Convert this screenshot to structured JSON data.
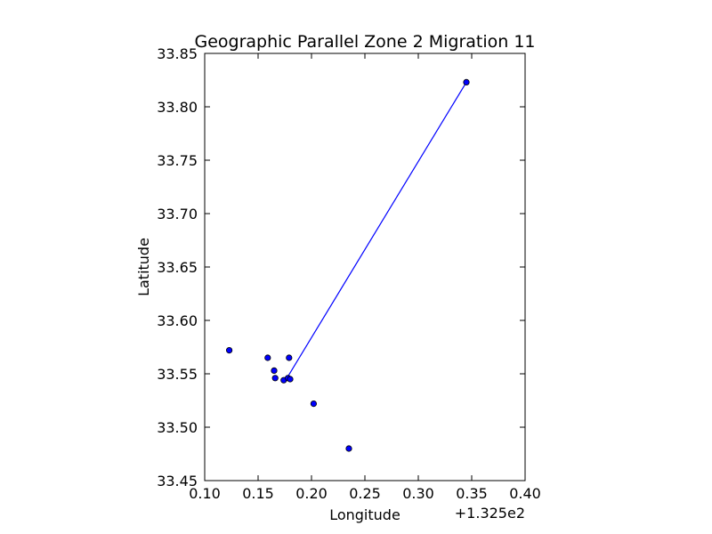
{
  "chart_data": {
    "type": "scatter",
    "title": "Geographic Parallel Zone 2 Migration 11",
    "xlabel": "Longitude",
    "ylabel": "Latitude",
    "x_offset_label": "+1.325e2",
    "xlim": [
      0.1,
      0.4
    ],
    "ylim": [
      33.45,
      33.85
    ],
    "xticks": [
      "0.10",
      "0.15",
      "0.20",
      "0.25",
      "0.30",
      "0.35",
      "0.40"
    ],
    "yticks": [
      "33.45",
      "33.50",
      "33.55",
      "33.60",
      "33.65",
      "33.70",
      "33.75",
      "33.80",
      "33.85"
    ],
    "grid": false,
    "point_color": "#0000ff",
    "line_color": "#0000ff",
    "points": [
      {
        "x": 0.123,
        "y": 33.572
      },
      {
        "x": 0.159,
        "y": 33.565
      },
      {
        "x": 0.165,
        "y": 33.553
      },
      {
        "x": 0.166,
        "y": 33.546
      },
      {
        "x": 0.174,
        "y": 33.544
      },
      {
        "x": 0.178,
        "y": 33.546
      },
      {
        "x": 0.179,
        "y": 33.565
      },
      {
        "x": 0.18,
        "y": 33.545
      },
      {
        "x": 0.202,
        "y": 33.522
      },
      {
        "x": 0.235,
        "y": 33.48
      },
      {
        "x": 0.345,
        "y": 33.823
      }
    ],
    "line": [
      {
        "x": 0.177,
        "y": 33.546
      },
      {
        "x": 0.345,
        "y": 33.823
      }
    ]
  }
}
